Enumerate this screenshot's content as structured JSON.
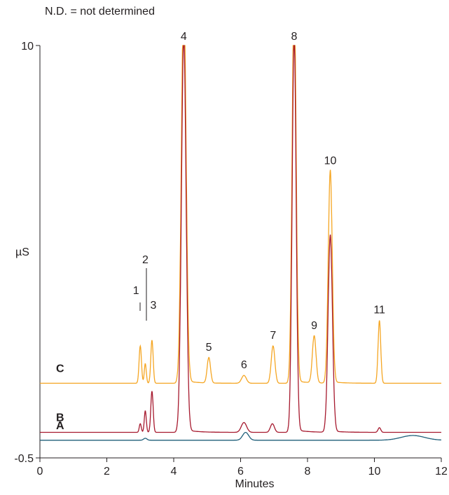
{
  "note": "N.D. = not determined",
  "chart_data": {
    "type": "line",
    "xlabel": "Minutes",
    "ylabel": "µS",
    "xlim": [
      0,
      12
    ],
    "ylim": [
      -0.5,
      10
    ],
    "x_ticks": [
      "0",
      "2",
      "4",
      "6",
      "8",
      "10",
      "12"
    ],
    "y_ticks": [
      "10",
      "-0.5"
    ],
    "grid": false,
    "series": [
      {
        "name": "C",
        "color": "#f5a623",
        "baseline": 1.4,
        "peaks": [
          {
            "label": "1",
            "t": 3.0,
            "h": 0.95,
            "w": 0.035
          },
          {
            "label": "2",
            "t": 3.15,
            "h": 0.5,
            "w": 0.03
          },
          {
            "label": "3",
            "t": 3.35,
            "h": 1.1,
            "w": 0.035
          },
          {
            "label": "4",
            "t": 4.3,
            "h": 10.0,
            "w": 0.07,
            "clipped": true
          },
          {
            "label": "5",
            "t": 5.05,
            "h": 0.65,
            "w": 0.05
          },
          {
            "label": "6",
            "t": 6.1,
            "h": 0.2,
            "w": 0.07
          },
          {
            "label": "7",
            "t": 6.97,
            "h": 0.95,
            "w": 0.055
          },
          {
            "label": "8",
            "t": 7.6,
            "h": 10.0,
            "w": 0.06,
            "clipped": true
          },
          {
            "label": "9",
            "t": 8.2,
            "h": 1.2,
            "w": 0.055
          },
          {
            "label": "10",
            "t": 8.68,
            "h": 5.4,
            "w": 0.06
          },
          {
            "label": "11",
            "t": 10.15,
            "h": 1.6,
            "w": 0.04
          }
        ]
      },
      {
        "name": "B",
        "color": "#a6192e",
        "baseline": 0.15,
        "peaks": [
          {
            "t": 3.0,
            "h": 0.22,
            "w": 0.03
          },
          {
            "t": 3.15,
            "h": 0.55,
            "w": 0.03
          },
          {
            "t": 3.35,
            "h": 1.05,
            "w": 0.035
          },
          {
            "t": 4.3,
            "h": 10.0,
            "w": 0.07
          },
          {
            "t": 6.1,
            "h": 0.25,
            "w": 0.08
          },
          {
            "t": 6.95,
            "h": 0.22,
            "w": 0.06
          },
          {
            "t": 7.6,
            "h": 10.0,
            "w": 0.06
          },
          {
            "t": 8.68,
            "h": 5.0,
            "w": 0.065
          },
          {
            "t": 10.15,
            "h": 0.12,
            "w": 0.04
          }
        ]
      },
      {
        "name": "A",
        "color": "#1f5f7a",
        "baseline": -0.05,
        "peaks": [
          {
            "t": 3.15,
            "h": 0.05,
            "w": 0.05
          },
          {
            "t": 6.15,
            "h": 0.2,
            "w": 0.09
          },
          {
            "t": 11.15,
            "h": 0.12,
            "w": 0.35
          }
        ]
      }
    ]
  }
}
